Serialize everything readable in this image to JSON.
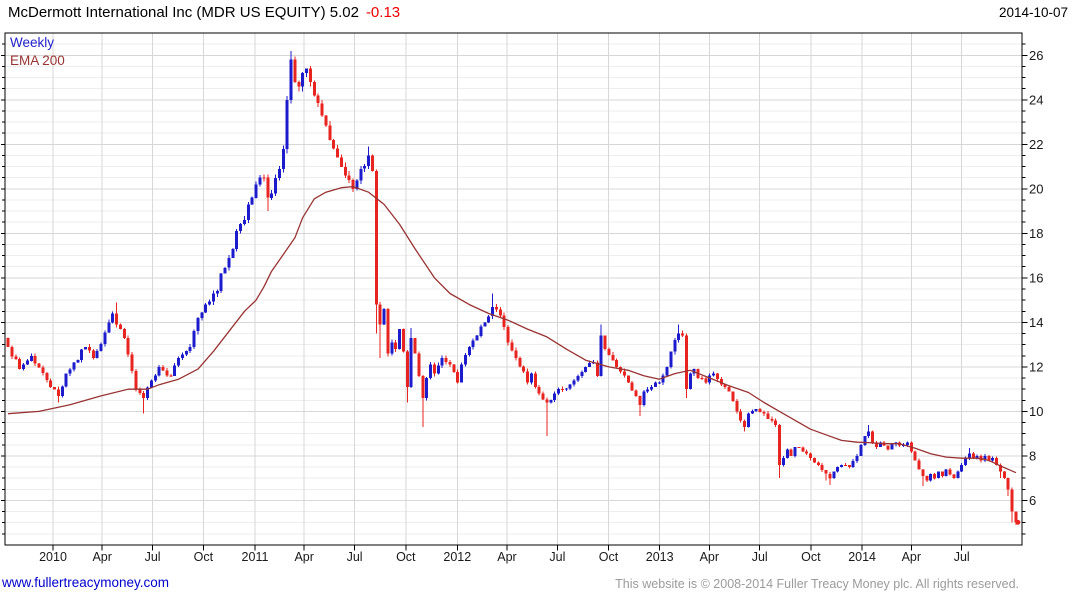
{
  "header": {
    "title": "McDermott International Inc (MDR US EQUITY) 5.02",
    "change": "-0.13",
    "date": "2014-10-07"
  },
  "legend": {
    "series": "Weekly",
    "overlay": "EMA 200"
  },
  "footer": {
    "site_link": "www.fullertreacymoney.com",
    "copyright": "This website is © 2008-2014 Fuller Treacy Money plc. All rights reserved."
  },
  "colors": {
    "up": "#1c1ccd",
    "down": "#e82420",
    "ema": "#993333",
    "grid_major": "#d7d7d7",
    "grid_minor": "#ededed",
    "frame": "#000000",
    "tick": "#000000",
    "axis_text": "#1a1a1a",
    "change_negative": "#ee0000",
    "link": "#0000cc",
    "copyright_text": "#9b9b9b"
  },
  "chart_data": {
    "type": "candlestick",
    "instrument": "McDermott International Inc",
    "symbol": "MDR US EQUITY",
    "interval": "Weekly",
    "overlay": "EMA 200",
    "last_price": 5.02,
    "change": -0.13,
    "as_of": "2014-10-07",
    "grid": true,
    "y_axis": {
      "min": 4,
      "max": 27,
      "minor_step": 0.5,
      "major_ticks": [
        6,
        8,
        10,
        12,
        14,
        16,
        18,
        20,
        22,
        24,
        26
      ]
    },
    "x_ticks": [
      [
        11.6,
        "2010"
      ],
      [
        24.3,
        "Apr"
      ],
      [
        37.3,
        "Jul"
      ],
      [
        50.4,
        "Oct"
      ],
      [
        63.7,
        "2011"
      ],
      [
        76.4,
        "Apr"
      ],
      [
        89.4,
        "Jul"
      ],
      [
        102.6,
        "Oct"
      ],
      [
        115.9,
        "2012"
      ],
      [
        128.7,
        "Apr"
      ],
      [
        141.7,
        "Jul"
      ],
      [
        154.9,
        "Oct"
      ],
      [
        168.1,
        "2013"
      ],
      [
        180.9,
        "Apr"
      ],
      [
        193.9,
        "Jul"
      ],
      [
        207.1,
        "Oct"
      ],
      [
        220.3,
        "2014"
      ],
      [
        233.0,
        "Apr"
      ],
      [
        246.0,
        "Jul"
      ]
    ],
    "weeks_total": 261,
    "close_anchors": [
      [
        0,
        12.9
      ],
      [
        3,
        11.9
      ],
      [
        6,
        12.5
      ],
      [
        10,
        11.4
      ],
      [
        13,
        10.7
      ],
      [
        15,
        11.7
      ],
      [
        20,
        12.9
      ],
      [
        22,
        12.4
      ],
      [
        26,
        14.0
      ],
      [
        27,
        14.4
      ],
      [
        28,
        13.9
      ],
      [
        30,
        13.3
      ],
      [
        33,
        11.0
      ],
      [
        35,
        10.6
      ],
      [
        37,
        11.4
      ],
      [
        39,
        12.0
      ],
      [
        42,
        11.6
      ],
      [
        44,
        12.4
      ],
      [
        47,
        12.9
      ],
      [
        49,
        14.2
      ],
      [
        51,
        14.8
      ],
      [
        53,
        15.3
      ],
      [
        54,
        15.4
      ],
      [
        55,
        16.2
      ],
      [
        57,
        16.9
      ],
      [
        58,
        17.3
      ],
      [
        59,
        18.1
      ],
      [
        61,
        18.6
      ],
      [
        62,
        19.3
      ],
      [
        63,
        19.6
      ],
      [
        64,
        20.2
      ],
      [
        66,
        20.5
      ],
      [
        67,
        19.6
      ],
      [
        68,
        19.8
      ],
      [
        70,
        20.9
      ],
      [
        71,
        21.8
      ],
      [
        72,
        24.0
      ],
      [
        73,
        25.8
      ],
      [
        74,
        24.8
      ],
      [
        75,
        24.6
      ],
      [
        76,
        25.2
      ],
      [
        77,
        25.4
      ],
      [
        78,
        24.8
      ],
      [
        79,
        24.2
      ],
      [
        81,
        23.3
      ],
      [
        83,
        22.2
      ],
      [
        85,
        21.4
      ],
      [
        87,
        20.6
      ],
      [
        89,
        20.0
      ],
      [
        91,
        20.9
      ],
      [
        93,
        21.5
      ],
      [
        94,
        20.8
      ],
      [
        95,
        14.8
      ],
      [
        96,
        13.9
      ],
      [
        97,
        14.6
      ],
      [
        98,
        12.6
      ],
      [
        99,
        13.1
      ],
      [
        100,
        12.8
      ],
      [
        101,
        13.7
      ],
      [
        102,
        12.7
      ],
      [
        103,
        11.1
      ],
      [
        104,
        13.3
      ],
      [
        105,
        12.6
      ],
      [
        106,
        11.6
      ],
      [
        107,
        10.6
      ],
      [
        108,
        11.5
      ],
      [
        109,
        12.1
      ],
      [
        110,
        11.7
      ],
      [
        112,
        12.4
      ],
      [
        114,
        12.1
      ],
      [
        116,
        11.3
      ],
      [
        117,
        12.1
      ],
      [
        119,
        12.9
      ],
      [
        121,
        13.4
      ],
      [
        123,
        14.0
      ],
      [
        125,
        14.7
      ],
      [
        127,
        14.3
      ],
      [
        128,
        13.8
      ],
      [
        129,
        13.1
      ],
      [
        131,
        12.4
      ],
      [
        133,
        11.8
      ],
      [
        134,
        11.3
      ],
      [
        135,
        11.7
      ],
      [
        136,
        11.1
      ],
      [
        137,
        10.8
      ],
      [
        139,
        10.4
      ],
      [
        141,
        10.8
      ],
      [
        143,
        11.0
      ],
      [
        145,
        11.2
      ],
      [
        147,
        11.6
      ],
      [
        149,
        12.0
      ],
      [
        151,
        12.2
      ],
      [
        152,
        11.6
      ],
      [
        153,
        13.4
      ],
      [
        154,
        12.8
      ],
      [
        156,
        12.3
      ],
      [
        158,
        11.8
      ],
      [
        160,
        11.3
      ],
      [
        162,
        10.7
      ],
      [
        163,
        10.3
      ],
      [
        164,
        10.9
      ],
      [
        166,
        11.1
      ],
      [
        168,
        11.3
      ],
      [
        170,
        12.0
      ],
      [
        172,
        13.2
      ],
      [
        173,
        13.5
      ],
      [
        174,
        13.4
      ],
      [
        175,
        11.0
      ],
      [
        176,
        11.7
      ],
      [
        177,
        11.9
      ],
      [
        178,
        11.5
      ],
      [
        180,
        11.3
      ],
      [
        182,
        11.7
      ],
      [
        184,
        11.2
      ],
      [
        186,
        10.9
      ],
      [
        188,
        10.0
      ],
      [
        190,
        9.3
      ],
      [
        191,
        9.9
      ],
      [
        193,
        10.1
      ],
      [
        195,
        9.9
      ],
      [
        197,
        9.6
      ],
      [
        198,
        9.4
      ],
      [
        199,
        7.6
      ],
      [
        200,
        7.9
      ],
      [
        201,
        8.3
      ],
      [
        202,
        8.0
      ],
      [
        203,
        8.4
      ],
      [
        205,
        8.2
      ],
      [
        207,
        7.9
      ],
      [
        209,
        7.6
      ],
      [
        211,
        7.2
      ],
      [
        212,
        7.0
      ],
      [
        213,
        7.3
      ],
      [
        215,
        7.6
      ],
      [
        217,
        7.5
      ],
      [
        219,
        8.0
      ],
      [
        220,
        8.5
      ],
      [
        221,
        8.9
      ],
      [
        222,
        9.1
      ],
      [
        223,
        8.6
      ],
      [
        224,
        8.4
      ],
      [
        225,
        8.6
      ],
      [
        227,
        8.3
      ],
      [
        229,
        8.6
      ],
      [
        231,
        8.5
      ],
      [
        232,
        8.6
      ],
      [
        233,
        8.2
      ],
      [
        234,
        7.8
      ],
      [
        235,
        7.4
      ],
      [
        236,
        7.1
      ],
      [
        237,
        6.9
      ],
      [
        238,
        7.2
      ],
      [
        239,
        7.0
      ],
      [
        240,
        7.3
      ],
      [
        241,
        7.1
      ],
      [
        242,
        7.4
      ],
      [
        244,
        7.0
      ],
      [
        245,
        7.3
      ],
      [
        246,
        7.6
      ],
      [
        247,
        7.9
      ],
      [
        248,
        8.1
      ],
      [
        249,
        7.9
      ],
      [
        250,
        8.0
      ],
      [
        251,
        7.8
      ],
      [
        252,
        8.0
      ],
      [
        253,
        7.8
      ],
      [
        254,
        7.9
      ],
      [
        255,
        7.6
      ],
      [
        256,
        7.3
      ],
      [
        257,
        7.0
      ],
      [
        258,
        6.5
      ],
      [
        259,
        5.5
      ],
      [
        260,
        5.02
      ]
    ],
    "high_overrides": {
      "28": 14.9,
      "73": 26.2,
      "93": 21.9,
      "104": 13.75,
      "125": 15.3,
      "153": 13.9,
      "173": 13.9,
      "222": 9.4,
      "248": 8.35,
      "260": 5.3
    },
    "low_overrides": {
      "13": 10.4,
      "35": 9.9,
      "67": 19.0,
      "95": 13.5,
      "96": 12.4,
      "103": 10.4,
      "107": 9.3,
      "139": 8.9,
      "163": 9.8,
      "175": 10.6,
      "190": 9.1,
      "199": 7.0,
      "211": 6.9,
      "212": 6.7,
      "236": 6.65,
      "256": 7.0,
      "258": 6.2,
      "259": 5.0,
      "260": 4.9
    },
    "ema_anchors": [
      [
        0,
        9.9
      ],
      [
        8,
        10.0
      ],
      [
        16,
        10.3
      ],
      [
        24,
        10.7
      ],
      [
        31,
        11.0
      ],
      [
        36,
        11.0
      ],
      [
        39,
        11.2
      ],
      [
        44,
        11.45
      ],
      [
        49,
        11.9
      ],
      [
        53,
        12.7
      ],
      [
        57,
        13.6
      ],
      [
        61,
        14.5
      ],
      [
        64,
        15.0
      ],
      [
        66,
        15.6
      ],
      [
        68,
        16.3
      ],
      [
        71,
        17.05
      ],
      [
        74,
        17.8
      ],
      [
        76,
        18.7
      ],
      [
        79,
        19.55
      ],
      [
        82,
        19.85
      ],
      [
        86,
        20.05
      ],
      [
        89,
        20.1
      ],
      [
        93,
        19.85
      ],
      [
        97,
        19.3
      ],
      [
        101,
        18.4
      ],
      [
        105,
        17.3
      ],
      [
        110,
        16.0
      ],
      [
        114,
        15.3
      ],
      [
        119,
        14.8
      ],
      [
        124,
        14.4
      ],
      [
        129,
        14.1
      ],
      [
        134,
        13.7
      ],
      [
        139,
        13.35
      ],
      [
        144,
        12.8
      ],
      [
        149,
        12.3
      ],
      [
        155,
        12.0
      ],
      [
        160,
        11.85
      ],
      [
        164,
        11.6
      ],
      [
        168,
        11.45
      ],
      [
        172,
        11.7
      ],
      [
        176,
        11.85
      ],
      [
        181,
        11.5
      ],
      [
        186,
        11.15
      ],
      [
        191,
        10.85
      ],
      [
        195,
        10.4
      ],
      [
        199,
        10.0
      ],
      [
        203,
        9.6
      ],
      [
        207,
        9.2
      ],
      [
        211,
        8.95
      ],
      [
        215,
        8.7
      ],
      [
        219,
        8.62
      ],
      [
        222,
        8.6
      ],
      [
        226,
        8.55
      ],
      [
        230,
        8.55
      ],
      [
        234,
        8.35
      ],
      [
        238,
        8.1
      ],
      [
        242,
        7.95
      ],
      [
        246,
        7.9
      ],
      [
        250,
        7.9
      ],
      [
        252,
        7.85
      ],
      [
        254,
        7.72
      ],
      [
        256,
        7.55
      ],
      [
        258,
        7.4
      ],
      [
        260,
        7.25
      ]
    ],
    "last_marker_price": 5.02
  }
}
